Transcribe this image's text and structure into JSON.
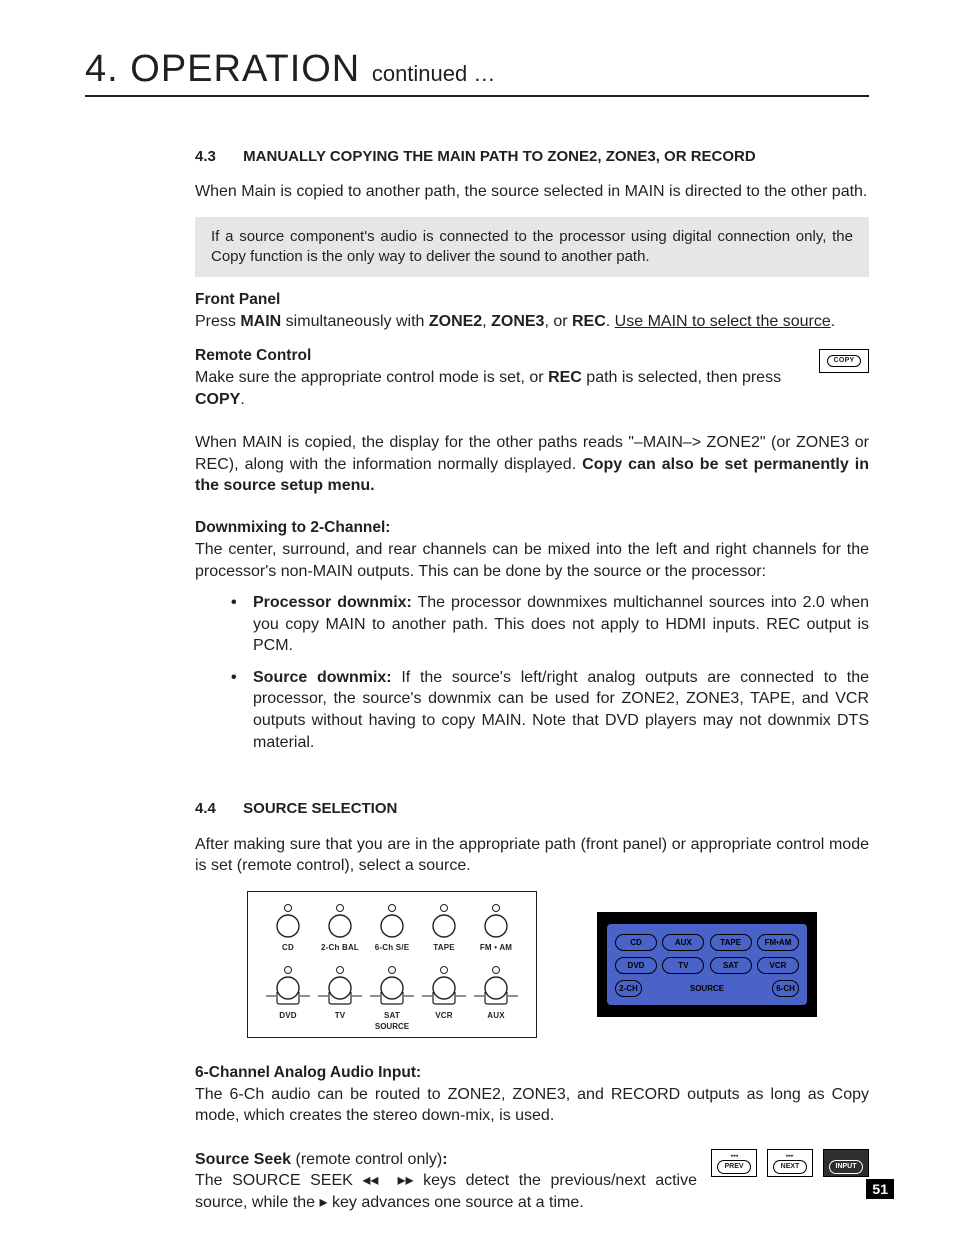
{
  "chapter": {
    "num": "4.",
    "title": "OPERATION",
    "cont": "continued …"
  },
  "s43": {
    "num": "4.3",
    "title": "MANUALLY COPYING THE MAIN PATH TO ZONE2, ZONE3, OR RECORD",
    "intro": "When Main is copied to another path, the source selected in MAIN is directed to the other path.",
    "note": "If a source component's audio is connected to the processor using digital connection only, the Copy function is the only way to deliver the sound to another path.",
    "fp_head": "Front Panel",
    "fp_a": "Press ",
    "fp_main": "MAIN",
    "fp_b": " simultaneously with ",
    "fp_z2": "ZONE2",
    "fp_c": ", ",
    "fp_z3": "ZONE3",
    "fp_d": ", or ",
    "fp_rec": "REC",
    "fp_e": ". ",
    "fp_u": "Use MAIN to select the source",
    "fp_f": ".",
    "rc_head": "Remote Control",
    "rc_a": "Make sure the appropriate control mode is set, or ",
    "rc_rec": "REC",
    "rc_b": " path is selected, then press ",
    "rc_copy": "COPY",
    "rc_c": ".",
    "copy_badge": "COPY",
    "after_a": "When MAIN is copied, the display for the other paths reads \"–MAIN–> ZONE2\" (or ZONE3 or REC), along with the information normally displayed. ",
    "after_b": "Copy can also be set permanently in the source setup menu.",
    "dm_head": "Downmixing to 2-Channel:",
    "dm_intro": "The center, surround, and rear channels can be mixed into the left and right channels for the processor's non-MAIN outputs. This can be done by the source or the processor:",
    "li1_b": "Processor downmix:",
    "li1_t": " The processor downmixes multichannel sources into 2.0 when you copy MAIN to another path. This does not apply to HDMI inputs. REC output is PCM.",
    "li2_b": "Source downmix:",
    "li2_t": "  If the source's left/right analog outputs are connected to the processor, the source's downmix can be used for ZONE2, ZONE3, TAPE, and VCR outputs without having to copy MAIN. Note that DVD players may not downmix DTS material."
  },
  "s44": {
    "num": "4.4",
    "title": "SOURCE SELECTION",
    "intro": "After making sure that you are in the appropriate path (front panel) or appropriate control mode is set (remote control), select a source.",
    "panel_top": [
      "CD",
      "2-Ch BAL",
      "6-Ch S/E",
      "TAPE",
      "FM • AM"
    ],
    "panel_bot": [
      "DVD",
      "TV",
      "SAT",
      "VCR",
      "AUX"
    ],
    "panel_source": "SOURCE",
    "remote_r1": [
      "CD",
      "AUX",
      "TAPE",
      "FM•AM"
    ],
    "remote_r2": [
      "DVD",
      "TV",
      "SAT",
      "VCR"
    ],
    "remote_r3": [
      "2-CH",
      "6-CH"
    ],
    "remote_source": "SOURCE",
    "six_head": "6-Channel Analog Audio Input:",
    "six_body": "The 6-Ch audio can be routed to ZONE2, ZONE3, and RECORD outputs as long as Copy mode, which creates the stereo down-mix, is used.",
    "seek_head": "Source Seek",
    "seek_head2": " (remote control only)",
    "seek_colon": ":",
    "seek_a": "The SOURCE SEEK ",
    "seek_b": " keys detect the previous/next active source, while the ",
    "seek_c": " key advances one source at a time.",
    "btn_prev_t": "◂◂◂",
    "btn_prev": "PREV",
    "btn_next_t": "▸▸▸",
    "btn_next": "NEXT",
    "btn_input": "INPUT"
  },
  "page_num": "51"
}
